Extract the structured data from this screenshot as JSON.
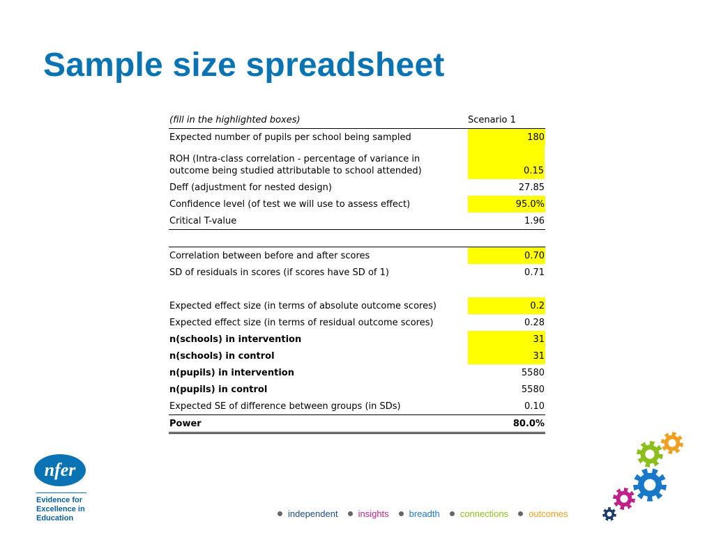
{
  "title": "Sample size spreadsheet",
  "sheet": {
    "header_label": "(fill in the highlighted boxes)",
    "header_value": "Scenario 1",
    "rows": [
      {
        "label": "Expected number of pupils per school being sampled",
        "value": "180"
      },
      {
        "label_line1": "ROH (Intra-class correlation - percentage of variance in",
        "label_line2": "outcome being studied attributable to school attended)",
        "value": "0.15"
      },
      {
        "label": "Deff (adjustment for nested design)",
        "value": "27.85"
      },
      {
        "label": "Confidence level (of test we will use to assess effect)",
        "value": "95.0%"
      },
      {
        "label": "Critical T-value",
        "value": "1.96"
      },
      {
        "label": "Correlation between before and after scores",
        "value": "0.70"
      },
      {
        "label": "SD of residuals in scores (if scores have SD of 1)",
        "value": "0.71"
      },
      {
        "label": "Expected effect size (in terms of absolute outcome scores)",
        "value": "0.2"
      },
      {
        "label": "Expected effect size (in terms of residual outcome scores)",
        "value": "0.28"
      },
      {
        "label": "n(schools) in intervention",
        "value": "31"
      },
      {
        "label": "n(schools) in control",
        "value": "31"
      },
      {
        "label": "n(pupils) in intervention",
        "value": "5580"
      },
      {
        "label": "n(pupils) in control",
        "value": "5580"
      },
      {
        "label": "Expected SE of difference between groups (in SDs)",
        "value": "0.10"
      },
      {
        "label": "Power",
        "value": "80.0%"
      }
    ]
  },
  "logo": {
    "text": "nfer",
    "tagline": "Evidence for Excellence in Education",
    "tagline_lines": [
      "Evidence for",
      "Excellence in",
      "Education"
    ]
  },
  "footer": {
    "words": [
      {
        "text": "independent",
        "color": "#1a4a8a"
      },
      {
        "text": "insights",
        "color": "#c0208a"
      },
      {
        "text": "breadth",
        "color": "#1a78c8"
      },
      {
        "text": "connections",
        "color": "#8cbf1e"
      },
      {
        "text": "outcomes",
        "color": "#f0a020"
      }
    ]
  },
  "colors": {
    "title": "#0a73b3",
    "highlight": "#ffff00",
    "gear_green": "#8cbf1e",
    "gear_orange": "#f0a020",
    "gear_blue": "#1a78c8",
    "gear_magenta": "#c0208a",
    "gear_navy": "#1a3a6a"
  }
}
